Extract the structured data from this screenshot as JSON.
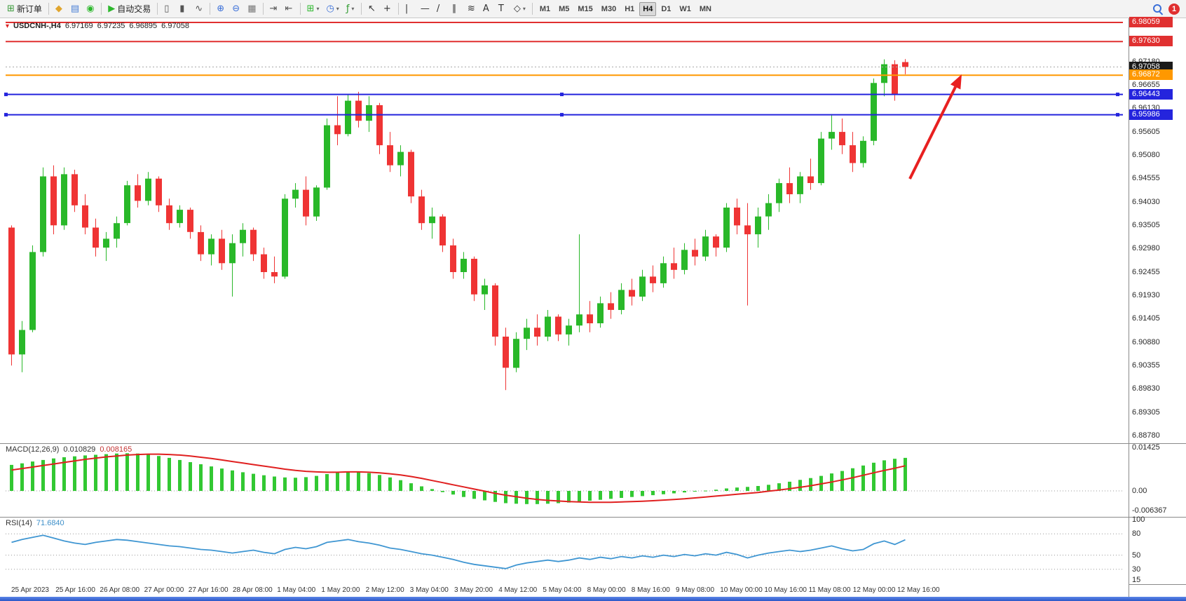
{
  "toolbar": {
    "items": [
      {
        "name": "new-order-button",
        "glyph": "⊞",
        "color": "#3a9a3a",
        "label": "新订单"
      },
      {
        "sep": true
      },
      {
        "name": "metaeditor-button",
        "glyph": "◆",
        "color": "#e0a52e"
      },
      {
        "name": "depth-of-market-button",
        "glyph": "▤",
        "color": "#4a7fd6"
      },
      {
        "name": "community-button",
        "glyph": "◉",
        "color": "#2db82d"
      },
      {
        "sep": true
      },
      {
        "name": "algo-trading-button",
        "glyph": "▶",
        "color": "#2db82d",
        "label": "自动交易"
      },
      {
        "sep": true
      },
      {
        "name": "chart-bars-button",
        "glyph": "▯",
        "color": "#555555"
      },
      {
        "name": "chart-candles-button",
        "glyph": "▮",
        "color": "#555555"
      },
      {
        "name": "chart-line-button",
        "glyph": "∿",
        "color": "#555555"
      },
      {
        "sep": true
      },
      {
        "name": "zoom-in-button",
        "glyph": "⊕",
        "color": "#3a6fd8"
      },
      {
        "name": "zoom-out-button",
        "glyph": "⊖",
        "color": "#3a6fd8"
      },
      {
        "name": "grid-button",
        "glyph": "▦",
        "color": "#777777"
      },
      {
        "sep": true
      },
      {
        "name": "auto-scroll-button",
        "glyph": "⇥",
        "color": "#555555"
      },
      {
        "name": "chart-shift-button",
        "glyph": "⇤",
        "color": "#555555"
      },
      {
        "sep": true
      },
      {
        "name": "new-chart-button",
        "glyph": "⊞",
        "color": "#2db82d",
        "dropdown": true
      },
      {
        "name": "timeframes-menu-button",
        "glyph": "◷",
        "color": "#3a6fd8",
        "dropdown": true
      },
      {
        "name": "indicators-menu-button",
        "glyph": "ƒ",
        "color": "#2d9a2d",
        "dropdown": true
      },
      {
        "sep": true
      },
      {
        "name": "cursor-button",
        "glyph": "↖",
        "color": "#333333"
      },
      {
        "name": "crosshair-button",
        "glyph": "+",
        "color": "#333333"
      },
      {
        "sep": true
      },
      {
        "name": "vertical-line-button",
        "glyph": "|",
        "color": "#333333"
      },
      {
        "name": "horizontal-line-button",
        "glyph": "—",
        "color": "#333333"
      },
      {
        "name": "trendline-button",
        "glyph": "/",
        "color": "#333333"
      },
      {
        "name": "channel-button",
        "glyph": "∥",
        "color": "#333333"
      },
      {
        "name": "fibonacci-button",
        "glyph": "≋",
        "color": "#333333"
      },
      {
        "name": "text-button",
        "glyph": "A",
        "color": "#333333"
      },
      {
        "name": "label-button",
        "glyph": "T",
        "color": "#333333"
      },
      {
        "name": "objects-button",
        "glyph": "◇",
        "color": "#333333",
        "dropdown": true
      },
      {
        "sep": true
      }
    ],
    "timeframes": {
      "items": [
        "M1",
        "M5",
        "M15",
        "M30",
        "H1",
        "H4",
        "D1",
        "W1",
        "MN"
      ],
      "selected": "H4"
    },
    "notification_count": "1"
  },
  "chart": {
    "header": {
      "symbol": "USDCNH-,H4",
      "open": "6.97169",
      "high": "6.97235",
      "low": "6.96895",
      "close": "6.97058"
    },
    "price_axis_ticks": [
      "6.97180",
      "6.96655",
      "6.96130",
      "6.95605",
      "6.95080",
      "6.94555",
      "6.94030",
      "6.93505",
      "6.92980",
      "6.92455",
      "6.91930",
      "6.91405",
      "6.90880",
      "6.90355",
      "6.89830",
      "6.89305",
      "6.88780"
    ],
    "badges": [
      {
        "label": "6.98059",
        "price": 6.98059,
        "bg": "#e03030"
      },
      {
        "label": "6.97630",
        "price": 6.9763,
        "bg": "#e03030"
      },
      {
        "label": "6.97058",
        "price": 6.97058,
        "bg": "#1a1a1a"
      },
      {
        "label": "6.96872",
        "price": 6.96872,
        "bg": "#ff9800"
      },
      {
        "label": "6.96443",
        "price": 6.96443,
        "bg": "#2424dd"
      },
      {
        "label": "6.95986",
        "price": 6.95986,
        "bg": "#2424dd"
      }
    ],
    "hlines": [
      {
        "price": 6.98059,
        "color": "#e03030",
        "width": 2
      },
      {
        "price": 6.9763,
        "color": "#e03030",
        "width": 2
      },
      {
        "price": 6.97058,
        "color": "#a8a8a8",
        "width": 1,
        "dash": "2,3"
      },
      {
        "price": 6.96872,
        "color": "#ff9800",
        "width": 2
      },
      {
        "price": 6.96443,
        "color": "#2424dd",
        "width": 2,
        "handles": true
      },
      {
        "price": 6.95986,
        "color": "#2424dd",
        "width": 2,
        "handles": true
      }
    ],
    "arrow": {
      "from": [
        1298,
        229
      ],
      "to": [
        1372,
        80
      ],
      "color": "#e82020",
      "width": 4
    }
  },
  "panels": {
    "macd": {
      "title": "MACD(12,26,9)",
      "value1": "0.010829",
      "value2": "0.008165",
      "axis": [
        {
          "label": "0.01425",
          "value": 0.01425
        },
        {
          "label": "0.00",
          "value": 0
        },
        {
          "label": "-0.006367",
          "value": -0.006367
        }
      ]
    },
    "rsi": {
      "title": "RSI(14)",
      "value": "71.6840",
      "axis": [
        {
          "label": "100",
          "value": 100
        },
        {
          "label": "80",
          "value": 80
        },
        {
          "label": "50",
          "value": 50
        },
        {
          "label": "30",
          "value": 30
        },
        {
          "label": "15",
          "value": 15
        }
      ],
      "levels": [
        80,
        50,
        30
      ]
    }
  },
  "chart_data": {
    "type": "candlestick",
    "symbol": "USDCNH",
    "timeframe": "H4",
    "title": "USDCNH-,H4",
    "price_range": {
      "min": 6.8878,
      "max": 6.983
    },
    "up_color": "#29b829",
    "down_color": "#ef3434",
    "candles": [
      [
        6.9345,
        6.935,
        6.9035,
        6.906
      ],
      [
        6.906,
        6.9135,
        6.902,
        6.9115
      ],
      [
        6.9115,
        6.9305,
        6.911,
        6.929
      ],
      [
        6.929,
        6.948,
        6.928,
        6.946
      ],
      [
        6.946,
        6.9485,
        6.933,
        6.935
      ],
      [
        6.935,
        6.948,
        6.934,
        6.9465
      ],
      [
        6.9465,
        6.9475,
        6.938,
        6.9395
      ],
      [
        6.9395,
        6.942,
        6.933,
        6.9345
      ],
      [
        6.9345,
        6.9365,
        6.928,
        6.93
      ],
      [
        6.93,
        6.9335,
        6.927,
        6.932
      ],
      [
        6.932,
        6.937,
        6.93,
        6.9355
      ],
      [
        6.9355,
        6.945,
        6.935,
        6.944
      ],
      [
        6.944,
        6.9465,
        6.939,
        6.9405
      ],
      [
        6.9405,
        6.947,
        6.9395,
        6.9455
      ],
      [
        6.9455,
        6.946,
        6.938,
        6.9395
      ],
      [
        6.9395,
        6.941,
        6.934,
        6.9355
      ],
      [
        6.9355,
        6.9395,
        6.9345,
        6.9385
      ],
      [
        6.9385,
        6.939,
        6.932,
        6.9335
      ],
      [
        6.9335,
        6.935,
        6.927,
        6.9285
      ],
      [
        6.9285,
        6.933,
        6.926,
        6.932
      ],
      [
        6.932,
        6.934,
        6.925,
        6.9265
      ],
      [
        6.9265,
        6.933,
        6.919,
        6.931
      ],
      [
        6.931,
        6.9355,
        6.928,
        6.934
      ],
      [
        6.934,
        6.9345,
        6.927,
        6.9285
      ],
      [
        6.9285,
        6.93,
        6.923,
        6.9245
      ],
      [
        6.9245,
        6.928,
        6.922,
        6.9235
      ],
      [
        6.9235,
        6.942,
        6.923,
        6.941
      ],
      [
        6.941,
        6.9445,
        6.939,
        6.943
      ],
      [
        6.943,
        6.946,
        6.935,
        6.937
      ],
      [
        6.937,
        6.944,
        6.936,
        6.9435
      ],
      [
        6.9435,
        6.959,
        6.943,
        6.9575
      ],
      [
        6.9575,
        6.964,
        6.953,
        6.9555
      ],
      [
        6.9555,
        6.9645,
        6.955,
        6.963
      ],
      [
        6.963,
        6.965,
        6.957,
        6.9585
      ],
      [
        6.9585,
        6.964,
        6.956,
        6.962
      ],
      [
        6.962,
        6.9625,
        6.951,
        6.953
      ],
      [
        6.953,
        6.956,
        6.947,
        6.9485
      ],
      [
        6.9485,
        6.953,
        6.946,
        6.9515
      ],
      [
        6.9515,
        6.952,
        6.94,
        6.9415
      ],
      [
        6.9415,
        6.943,
        6.934,
        6.9355
      ],
      [
        6.9355,
        6.939,
        6.932,
        6.937
      ],
      [
        6.937,
        6.9375,
        6.929,
        6.9305
      ],
      [
        6.9305,
        6.932,
        6.923,
        6.9245
      ],
      [
        6.9245,
        6.929,
        6.923,
        6.9275
      ],
      [
        6.9275,
        6.928,
        6.918,
        6.9195
      ],
      [
        6.9195,
        6.923,
        6.916,
        6.9215
      ],
      [
        6.9215,
        6.922,
        6.908,
        6.91
      ],
      [
        6.91,
        6.912,
        6.898,
        6.903
      ],
      [
        6.903,
        6.911,
        6.902,
        6.9095
      ],
      [
        6.9095,
        6.914,
        6.907,
        6.912
      ],
      [
        6.912,
        6.915,
        6.908,
        6.91
      ],
      [
        6.91,
        6.916,
        6.909,
        6.9145
      ],
      [
        6.9145,
        6.915,
        6.909,
        6.9105
      ],
      [
        6.9105,
        6.914,
        6.908,
        6.9125
      ],
      [
        6.9125,
        6.933,
        6.911,
        6.915
      ],
      [
        6.915,
        6.918,
        6.911,
        6.913
      ],
      [
        6.913,
        6.919,
        6.912,
        6.9175
      ],
      [
        6.9175,
        6.92,
        6.914,
        6.916
      ],
      [
        6.916,
        6.922,
        6.915,
        6.9205
      ],
      [
        6.9205,
        6.923,
        6.917,
        6.919
      ],
      [
        6.919,
        6.925,
        6.918,
        6.9235
      ],
      [
        6.9235,
        6.926,
        6.92,
        6.922
      ],
      [
        6.922,
        6.928,
        6.921,
        6.9265
      ],
      [
        6.9265,
        6.93,
        6.923,
        6.925
      ],
      [
        6.925,
        6.931,
        6.924,
        6.9295
      ],
      [
        6.9295,
        6.932,
        6.926,
        6.928
      ],
      [
        6.928,
        6.934,
        6.927,
        6.9325
      ],
      [
        6.9325,
        6.933,
        6.928,
        6.93
      ],
      [
        6.93,
        6.94,
        6.929,
        6.939
      ],
      [
        6.939,
        6.941,
        6.933,
        6.935
      ],
      [
        6.935,
        6.94,
        6.917,
        6.933
      ],
      [
        6.933,
        6.939,
        6.93,
        6.937
      ],
      [
        6.937,
        6.942,
        6.934,
        6.94
      ],
      [
        6.94,
        6.9455,
        6.938,
        6.9445
      ],
      [
        6.9445,
        6.948,
        6.94,
        6.942
      ],
      [
        6.942,
        6.947,
        6.94,
        6.946
      ],
      [
        6.946,
        6.95,
        6.943,
        6.9445
      ],
      [
        6.9445,
        6.956,
        6.944,
        6.9545
      ],
      [
        6.9545,
        6.96,
        6.952,
        6.956
      ],
      [
        6.956,
        6.959,
        6.951,
        6.953
      ],
      [
        6.953,
        6.956,
        6.947,
        6.949
      ],
      [
        6.949,
        6.955,
        6.948,
        6.954
      ],
      [
        6.954,
        6.968,
        6.953,
        6.967
      ],
      [
        6.967,
        6.9723,
        6.964,
        6.9712
      ],
      [
        6.9712,
        6.9721,
        6.963,
        6.9645
      ],
      [
        6.97169,
        6.97235,
        6.96895,
        6.97058
      ]
    ],
    "macd": {
      "histogram": [
        0.0085,
        0.009,
        0.0096,
        0.0101,
        0.0106,
        0.011,
        0.0113,
        0.0116,
        0.0118,
        0.012,
        0.0122,
        0.0123,
        0.0122,
        0.0119,
        0.0114,
        0.0108,
        0.0101,
        0.0094,
        0.0087,
        0.008,
        0.0073,
        0.0067,
        0.0061,
        0.0056,
        0.0051,
        0.0047,
        0.0044,
        0.0043,
        0.0045,
        0.0049,
        0.0055,
        0.006,
        0.0063,
        0.0062,
        0.0058,
        0.0052,
        0.0044,
        0.0035,
        0.0025,
        0.0015,
        0.0006,
        -0.0004,
        -0.0012,
        -0.002,
        -0.0026,
        -0.0031,
        -0.0036,
        -0.004,
        -0.0042,
        -0.0043,
        -0.0043,
        -0.0042,
        -0.004,
        -0.0038,
        -0.0035,
        -0.0032,
        -0.0029,
        -0.0026,
        -0.0023,
        -0.002,
        -0.0017,
        -0.0014,
        -0.0011,
        -0.0008,
        -0.0005,
        -0.0002,
        0.0001,
        0.0004,
        0.0008,
        0.0011,
        0.0013,
        0.0016,
        0.002,
        0.0025,
        0.003,
        0.0036,
        0.0042,
        0.0049,
        0.0057,
        0.0065,
        0.0074,
        0.0083,
        0.0092,
        0.01,
        0.0105,
        0.0108
      ],
      "signal": [
        0.0068,
        0.0073,
        0.0078,
        0.0083,
        0.0088,
        0.0093,
        0.0098,
        0.0103,
        0.0107,
        0.0111,
        0.0114,
        0.0117,
        0.0119,
        0.012,
        0.012,
        0.0119,
        0.0117,
        0.0114,
        0.011,
        0.0106,
        0.0101,
        0.0096,
        0.0091,
        0.0086,
        0.0081,
        0.0076,
        0.0071,
        0.0067,
        0.0064,
        0.0062,
        0.0061,
        0.0061,
        0.0062,
        0.0062,
        0.0061,
        0.0059,
        0.0056,
        0.0052,
        0.0047,
        0.0041,
        0.0034,
        0.0027,
        0.002,
        0.0013,
        0.0006,
        -0.0001,
        -0.0008,
        -0.0014,
        -0.0019,
        -0.0024,
        -0.0028,
        -0.0031,
        -0.0033,
        -0.0035,
        -0.0036,
        -0.0037,
        -0.0037,
        -0.0037,
        -0.0036,
        -0.0035,
        -0.0034,
        -0.0032,
        -0.003,
        -0.0028,
        -0.0026,
        -0.0023,
        -0.002,
        -0.0017,
        -0.0014,
        -0.0011,
        -0.0008,
        -0.0005,
        -0.0001,
        0.0003,
        0.0007,
        0.0012,
        0.0017,
        0.0023,
        0.0029,
        0.0036,
        0.0043,
        0.0051,
        0.0059,
        0.0067,
        0.0074,
        0.0082
      ],
      "range": [
        -0.006367,
        0.01425
      ],
      "histogram_color": "#32c832",
      "signal_color": "#e02020"
    },
    "rsi": {
      "values": [
        68,
        72,
        75,
        78,
        74,
        70,
        67,
        65,
        68,
        70,
        72,
        71,
        69,
        67,
        65,
        63,
        62,
        60,
        58,
        57,
        55,
        53,
        55,
        57,
        54,
        52,
        58,
        61,
        59,
        62,
        68,
        70,
        72,
        69,
        67,
        64,
        60,
        58,
        55,
        52,
        50,
        47,
        44,
        40,
        37,
        35,
        33,
        31,
        36,
        39,
        41,
        43,
        41,
        43,
        46,
        44,
        47,
        45,
        48,
        46,
        49,
        47,
        50,
        48,
        51,
        49,
        52,
        50,
        54,
        51,
        46,
        50,
        53,
        55,
        57,
        55,
        57,
        60,
        63,
        59,
        56,
        58,
        66,
        70,
        65,
        71.68
      ],
      "range": [
        15,
        100
      ],
      "line_color": "#3f96d2"
    },
    "time_labels": [
      "25 Apr 2023",
      "25 Apr 16:00",
      "26 Apr 08:00",
      "27 Apr 00:00",
      "27 Apr 16:00",
      "28 Apr 08:00",
      "1 May 04:00",
      "1 May 20:00",
      "2 May 12:00",
      "3 May 04:00",
      "3 May 20:00",
      "4 May 12:00",
      "5 May 04:00",
      "8 May 00:00",
      "8 May 16:00",
      "9 May 08:00",
      "10 May 00:00",
      "10 May 16:00",
      "11 May 08:00",
      "12 May 00:00",
      "12 May 16:00"
    ]
  }
}
